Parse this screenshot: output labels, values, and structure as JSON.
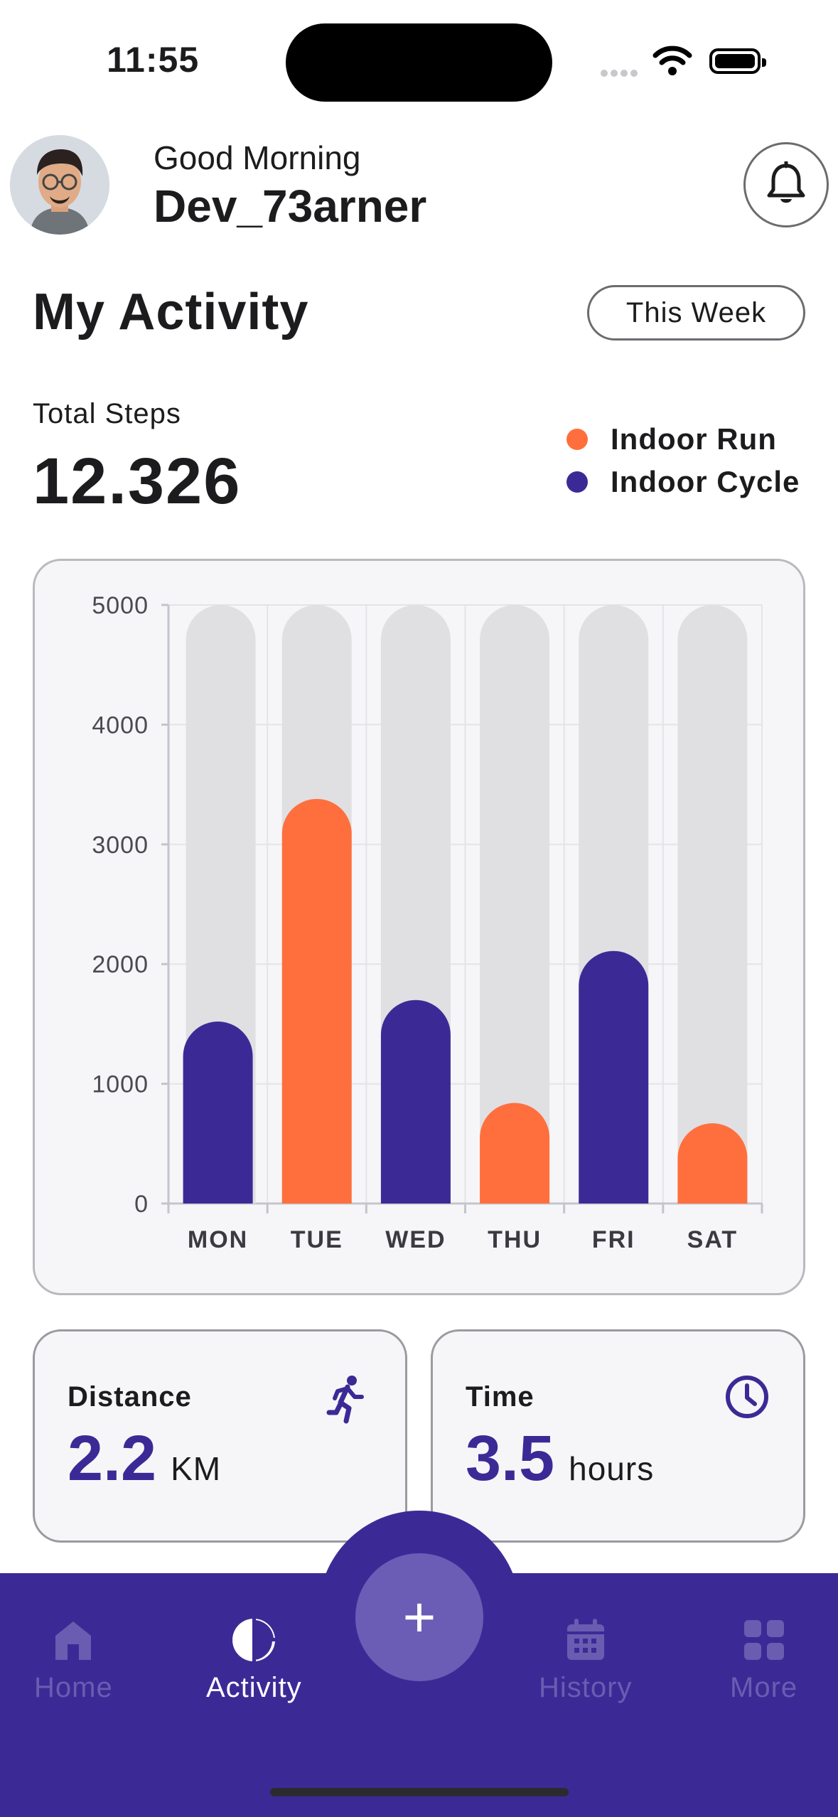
{
  "status_bar": {
    "time": "11:55"
  },
  "header": {
    "greeting": "Good Morning",
    "username": "Dev_73arner"
  },
  "activity": {
    "title": "My Activity",
    "period_button": "This Week",
    "steps_label": "Total Steps",
    "steps_value": "12.326"
  },
  "legend": [
    {
      "label": "Indoor Run",
      "color": "#ff6f3d"
    },
    {
      "label": "Indoor Cycle",
      "color": "#3b2a96"
    }
  ],
  "chart_data": {
    "type": "bar",
    "categories": [
      "MON",
      "TUE",
      "WED",
      "THU",
      "FRI",
      "SAT"
    ],
    "values": [
      1520,
      3380,
      1700,
      840,
      2110,
      670
    ],
    "activity": [
      "Indoor Cycle",
      "Indoor Run",
      "Indoor Cycle",
      "Indoor Run",
      "Indoor Cycle",
      "Indoor Run"
    ],
    "ylim": [
      0,
      5000
    ],
    "yticks": [
      0,
      1000,
      2000,
      3000,
      4000,
      5000
    ],
    "background_bar_max": 5000,
    "grid": true,
    "colors": {
      "Indoor Run": "#ff6f3d",
      "Indoor Cycle": "#3b2a96",
      "track": "#e0e0e2"
    }
  },
  "stats": {
    "distance": {
      "label": "Distance",
      "value": "2.2",
      "unit": "KM",
      "icon": "running-icon"
    },
    "time": {
      "label": "Time",
      "value": "3.5",
      "unit": "hours",
      "icon": "clock-icon"
    }
  },
  "nav": {
    "items": [
      {
        "label": "Home",
        "icon": "home-icon",
        "active": false
      },
      {
        "label": "Activity",
        "icon": "pie-chart-icon",
        "active": true
      },
      {
        "label": "History",
        "icon": "calendar-icon",
        "active": false
      },
      {
        "label": "More",
        "icon": "grid-icon",
        "active": false
      }
    ],
    "fab_label": "+"
  }
}
